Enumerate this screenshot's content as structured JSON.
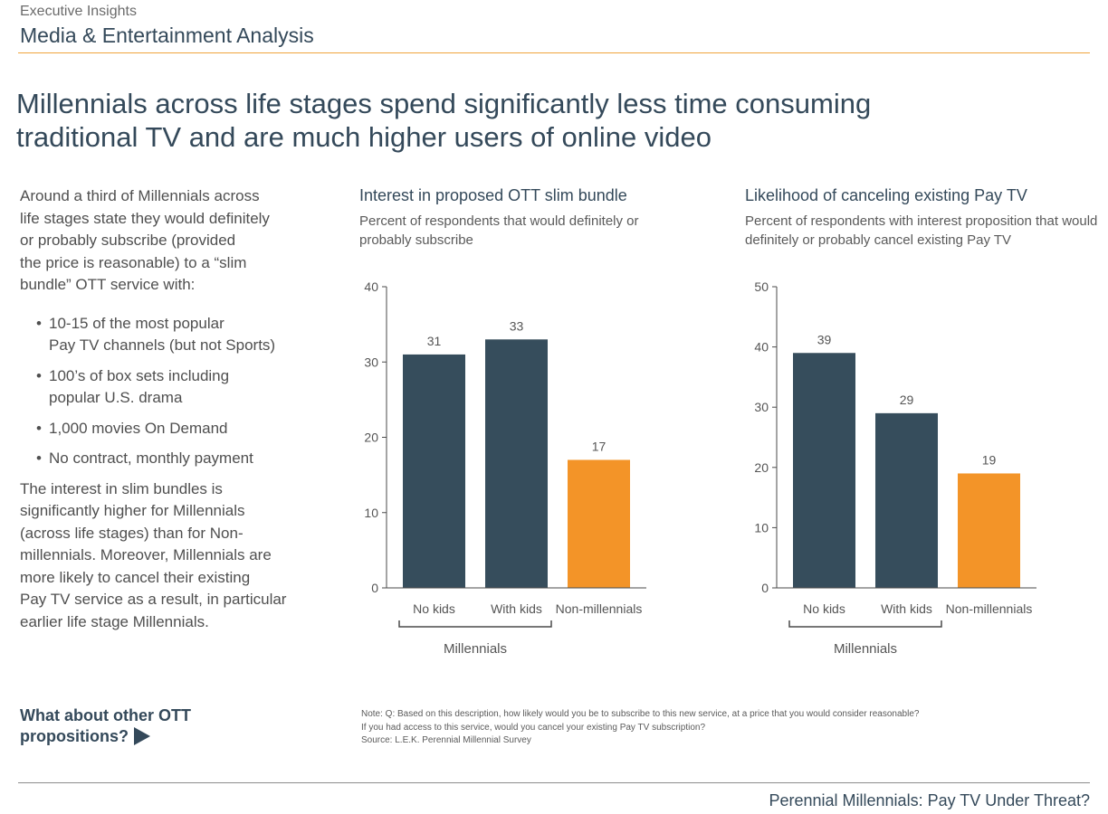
{
  "header": {
    "eyebrow": "Executive Insights",
    "section": "Media & Entertainment Analysis"
  },
  "headline": {
    "line1": "Millennials across life stages spend significantly less time consuming",
    "line2": "traditional TV and are much higher users of online video"
  },
  "left": {
    "intro_lines": [
      "Around a third of Millennials across",
      "life stages state they would definitely",
      "or probably subscribe (provided",
      "the price is reasonable) to a “slim",
      "bundle” OTT service with:"
    ],
    "bullet_glyph": "•",
    "bullets": [
      [
        "10-15 of the most popular",
        "Pay TV channels (but not Sports)"
      ],
      [
        "100’s of box sets including",
        "popular U.S. drama"
      ],
      [
        "1,000 movies On Demand"
      ],
      [
        "No contract, monthly payment"
      ]
    ],
    "closing_lines": [
      "The interest in slim bundles is",
      "significantly higher for Millennials",
      "(across life stages) than for Non-",
      "millennials. Moreover, Millennials are",
      "more likely to cancel their existing",
      "Pay TV service as a result, in particular",
      "earlier life stage Millennials."
    ]
  },
  "colors": {
    "millennial_bar": "#364d5c",
    "non_millennial_bar": "#f39428",
    "axis": "#4a4a4a"
  },
  "chart_data": [
    {
      "type": "bar",
      "title": "Interest in proposed OTT slim bundle",
      "subtitle": "Percent of respondents that would definitely or probably subscribe",
      "categories": [
        "No kids",
        "With kids",
        "Non-millennials"
      ],
      "values": [
        31,
        33,
        17
      ],
      "data_labels": [
        "31",
        "33",
        "17"
      ],
      "group_label": "Millennials",
      "group_span": [
        "No kids",
        "With kids"
      ],
      "ylim": [
        0,
        40
      ],
      "yticks": [
        "0",
        "10",
        "20",
        "30",
        "40"
      ],
      "grid": false,
      "xlabel": "",
      "ylabel": ""
    },
    {
      "type": "bar",
      "title": "Likelihood of canceling existing Pay TV",
      "subtitle": "Percent of respondents with interest proposition that would definitely or probably cancel existing Pay TV",
      "categories": [
        "No kids",
        "With kids",
        "Non-millennials"
      ],
      "values": [
        39,
        29,
        19
      ],
      "data_labels": [
        "39",
        "29",
        "19"
      ],
      "group_label": "Millennials",
      "group_span": [
        "No kids",
        "With kids"
      ],
      "ylim": [
        0,
        50
      ],
      "yticks": [
        "0",
        "10",
        "20",
        "30",
        "40",
        "50"
      ],
      "grid": false,
      "xlabel": "",
      "ylabel": ""
    }
  ],
  "cta": {
    "line1": "What about other OTT",
    "line2": "propositions?"
  },
  "notes": [
    "Note: Q: Based on this description, how likely would you be to subscribe to this new service, at a price that you would consider reasonable?",
    "If you had access to this service, would you cancel your existing Pay TV subscription?",
    "Source: L.E.K. Perennial Millennial Survey"
  ],
  "footer": "Perennial Millennials: Pay TV Under Threat?"
}
